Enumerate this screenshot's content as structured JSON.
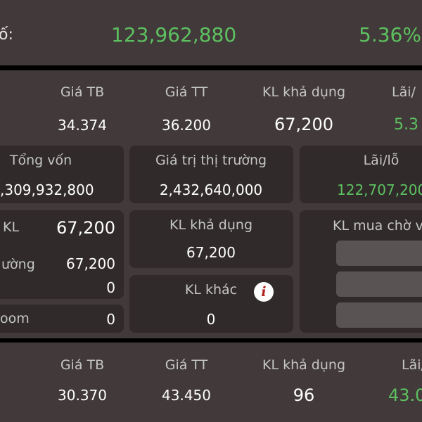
{
  "summary": {
    "label_fragment": "ố:",
    "profit_value": "123,962,880",
    "profit_percent": "5.36%"
  },
  "row1": {
    "giatb_label": "Giá TB",
    "giatb_value": "34.374",
    "giatt_label": "Giá TT",
    "giatt_value": "36.200",
    "kl_label": "KL khả dụng",
    "kl_value": "67,200",
    "lai_label_fragment": "Lãi/",
    "lai_value_fragment": "5.3"
  },
  "cards_top": {
    "tongvon_label": "Tổng vốn",
    "tongvon_value": ",309,932,800",
    "gttt_label": "Giá trị thị trường",
    "gttt_value": "2,432,640,000",
    "lailo_label": "Lãi/lỗ",
    "lailo_value": "122,707,200"
  },
  "left_card": {
    "kl_label": "KL",
    "kl_value": "67,200",
    "thuong_label": "ường",
    "thuong_value": "67,200",
    "r3_label": "",
    "r3_value": "0",
    "room_label": "oom",
    "room_value": "0"
  },
  "mid_cards": {
    "kl_kha_dung_label": "KL khả dụng",
    "kl_kha_dung_value": "67,200",
    "kl_khac_label": "KL khác",
    "kl_khac_value": "0",
    "info_glyph": "i"
  },
  "right_card": {
    "title": "KL mua chờ v"
  },
  "row2": {
    "giatb_label": "Giá TB",
    "giatb_value": "30.370",
    "giatt_label": "Giá TT",
    "giatt_value": "43.450",
    "kl_label": "KL khả dụng",
    "kl_value": "96",
    "lai_label_fragment": "Lãi/",
    "lai_value_fragment": "43.0"
  },
  "colors": {
    "panel": "#423a3a",
    "card": "#302a2a",
    "positive": "#5dc060",
    "info_icon": "#b0211c"
  }
}
